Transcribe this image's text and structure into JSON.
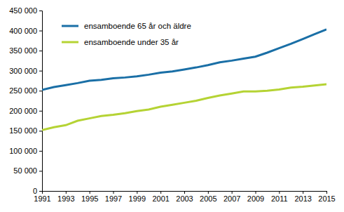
{
  "chart_data": {
    "type": "line",
    "x": [
      1991,
      1992,
      1993,
      1994,
      1995,
      1996,
      1997,
      1998,
      1999,
      2000,
      2001,
      2002,
      2003,
      2004,
      2005,
      2006,
      2007,
      2008,
      2009,
      2010,
      2011,
      2012,
      2013,
      2014,
      2015
    ],
    "series": [
      {
        "name": "ensamboende 65 år och äldre",
        "color": "#1a6fa6",
        "values": [
          252000,
          259000,
          264000,
          269000,
          275000,
          277000,
          281000,
          283000,
          286000,
          290000,
          295000,
          298000,
          303000,
          308000,
          314000,
          321000,
          325000,
          330000,
          335000,
          345000,
          356000,
          367000,
          379000,
          391000,
          403000
        ]
      },
      {
        "name": "ensamboende under 35 år",
        "color": "#b5d334",
        "values": [
          152000,
          159000,
          164000,
          175000,
          181000,
          187000,
          190000,
          194000,
          199000,
          203000,
          210000,
          215000,
          220000,
          225000,
          232000,
          238000,
          243000,
          248000,
          248000,
          250000,
          253000,
          258000,
          260000,
          263000,
          266000
        ]
      }
    ],
    "xlim": [
      1991,
      2015
    ],
    "xticks": [
      1991,
      1993,
      1995,
      1997,
      1999,
      2001,
      2003,
      2005,
      2007,
      2009,
      2011,
      2013,
      2015
    ],
    "ylim": [
      0,
      450000
    ],
    "yticks": [
      0,
      {
        "value": 50000,
        "label": "50 000"
      },
      {
        "value": 100000,
        "label": "100 000"
      },
      {
        "value": 150000,
        "label": "150 000"
      },
      {
        "value": 200000,
        "label": "200 000"
      },
      {
        "value": 250000,
        "label": "250 000"
      },
      {
        "value": 300000,
        "label": "300 000"
      },
      {
        "value": 350000,
        "label": "350 000"
      },
      {
        "value": 400000,
        "label": "400 000"
      },
      {
        "value": 450000,
        "label": "450 000"
      }
    ],
    "grid": false,
    "legend": "upper-left"
  }
}
